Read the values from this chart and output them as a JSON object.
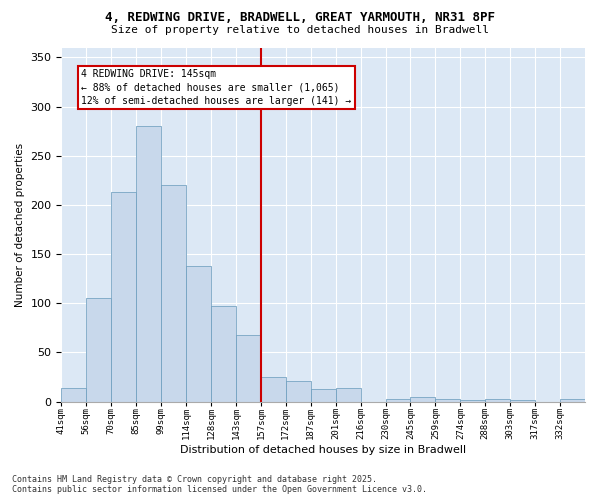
{
  "title_line1": "4, REDWING DRIVE, BRADWELL, GREAT YARMOUTH, NR31 8PF",
  "title_line2": "Size of property relative to detached houses in Bradwell",
  "xlabel": "Distribution of detached houses by size in Bradwell",
  "ylabel": "Number of detached properties",
  "bar_color": "#c8d8eb",
  "bar_edge_color": "#6699bb",
  "bg_color": "#dce8f5",
  "grid_color": "#ffffff",
  "categories": [
    "41sqm",
    "56sqm",
    "70sqm",
    "85sqm",
    "99sqm",
    "114sqm",
    "128sqm",
    "143sqm",
    "157sqm",
    "172sqm",
    "187sqm",
    "201sqm",
    "216sqm",
    "230sqm",
    "245sqm",
    "259sqm",
    "274sqm",
    "288sqm",
    "303sqm",
    "317sqm",
    "332sqm"
  ],
  "values": [
    14,
    105,
    213,
    280,
    220,
    138,
    97,
    68,
    25,
    21,
    13,
    14,
    0,
    3,
    5,
    3,
    2,
    3,
    2,
    0,
    3
  ],
  "ylim": [
    0,
    360
  ],
  "yticks": [
    0,
    50,
    100,
    150,
    200,
    250,
    300,
    350
  ],
  "vline_pos": 7.5,
  "vline_color": "#cc0000",
  "annotation_title": "4 REDWING DRIVE: 145sqm",
  "annotation_line1": "← 88% of detached houses are smaller (1,065)",
  "annotation_line2": "12% of semi-detached houses are larger (141) →",
  "annotation_box_color": "#cc0000",
  "footer_line1": "Contains HM Land Registry data © Crown copyright and database right 2025.",
  "footer_line2": "Contains public sector information licensed under the Open Government Licence v3.0."
}
